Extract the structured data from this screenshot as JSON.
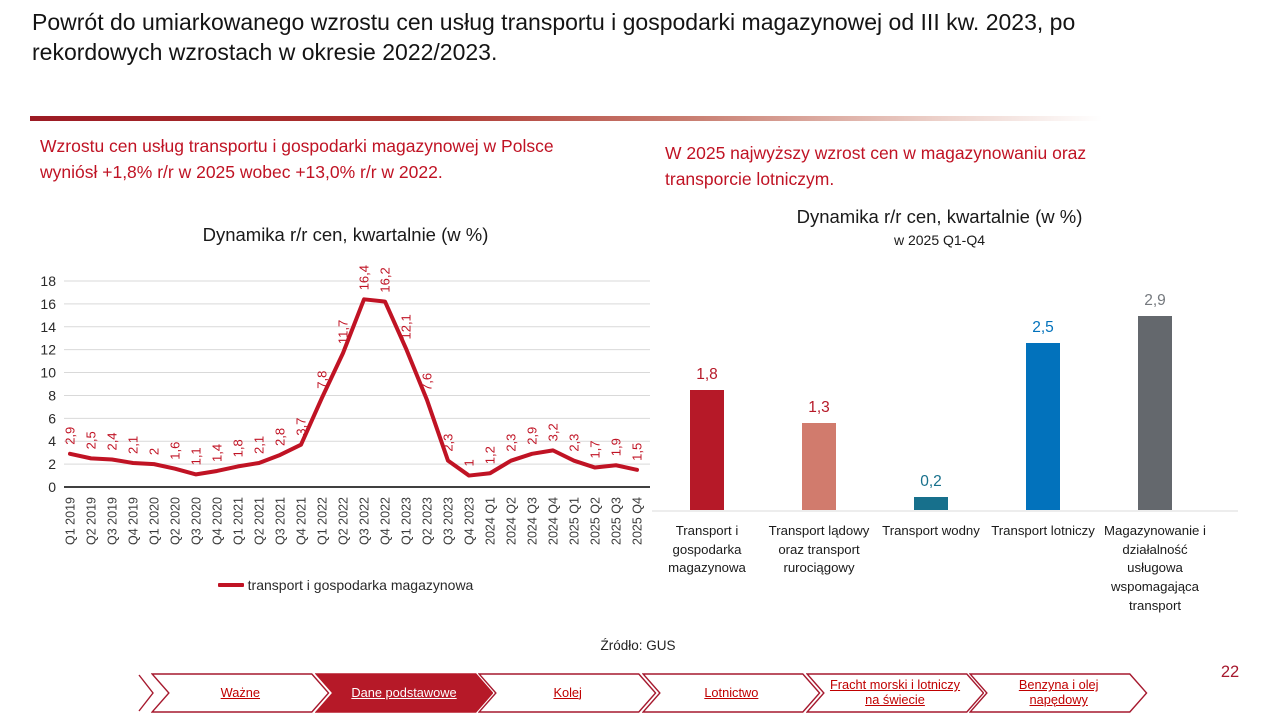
{
  "slide": {
    "title": "Powrót do umiarkowanego wzrostu cen usług transportu i gospodarki magazynowej od III kw. 2023, po rekordowych wzrostach w okresie 2022/2023.",
    "page_number": "22",
    "source": "Źródło: GUS"
  },
  "left_panel": {
    "callout": "Wzrostu cen usług transportu i gospodarki magazynowej w Polsce wyniósł +1,8% r/r w 2025 wobec +13,0% r/r w 2022.",
    "chart_title": "Dynamika r/r cen, kwartalnie (w %)"
  },
  "right_panel": {
    "callout": "W 2025 najwyższy wzrost cen w magazynowaniu oraz transporcie lotniczym.",
    "chart_title": "Dynamika r/r cen, kwartalnie (w %)",
    "chart_subtitle": "w 2025 Q1-Q4"
  },
  "chart_data": [
    {
      "type": "line",
      "title": "Dynamika r/r cen, kwartalnie (w %)",
      "x": [
        "Q1 2019",
        "Q2 2019",
        "Q3 2019",
        "Q4 2019",
        "Q1 2020",
        "Q2 2020",
        "Q3 2020",
        "Q4 2020",
        "Q1 2021",
        "Q2 2021",
        "Q3 2021",
        "Q4 2021",
        "Q1 2022",
        "Q2 2022",
        "Q3 2022",
        "Q4 2022",
        "Q1 2023",
        "Q2 2023",
        "Q3 2023",
        "Q4 2023",
        "2024 Q1",
        "2024 Q2",
        "2024 Q3",
        "2024 Q4",
        "2025 Q1",
        "2025 Q2",
        "2025 Q3",
        "2025 Q4"
      ],
      "series": [
        {
          "name": "transport i gospodarka magazynowa",
          "color": "#c01324",
          "values": [
            2.9,
            2.5,
            2.4,
            2.1,
            2,
            1.6,
            1.1,
            1.4,
            1.8,
            2.1,
            2.8,
            3.7,
            7.8,
            11.7,
            16.4,
            16.2,
            12.1,
            7.6,
            2.3,
            1,
            1.2,
            2.3,
            2.9,
            3.2,
            2.3,
            1.7,
            1.9,
            1.5
          ],
          "labels": [
            "2,9",
            "2,5",
            "2,4",
            "2,1",
            "2",
            "1,6",
            "1,1",
            "1,4",
            "1,8",
            "2,1",
            "2,8",
            "3,7",
            "7,8",
            "11,7",
            "16,4",
            "16,2",
            "12,1",
            "7,6",
            "2,3",
            "1",
            "1,2",
            "2,3",
            "2,9",
            "3,2",
            "2,3",
            "1,7",
            "1,9",
            "1,5"
          ]
        }
      ],
      "ylim": [
        0,
        18
      ],
      "ytick_step": 2,
      "grid": true,
      "legend_position": "bottom",
      "grid_color": "#d9d9d9",
      "axis_color": "#000000",
      "tick_color": "#3a3a3a"
    },
    {
      "type": "bar",
      "title": "Dynamika r/r cen, kwartalnie (w %)",
      "subtitle": "w 2025 Q1-Q4",
      "categories": [
        "Transport i gospodarka magazynowa",
        "Transport lądowy oraz transport rurociągowy",
        "Transport wodny",
        "Transport lotniczy",
        "Magazynowanie i działalność usługowa wspomagająca transport"
      ],
      "values": [
        1.8,
        1.3,
        0.2,
        2.5,
        2.9
      ],
      "labels": [
        "1,8",
        "1,3",
        "0,2",
        "2,5",
        "2,9"
      ],
      "bar_colors": [
        "#b61928",
        "#d17b6d",
        "#17708c",
        "#0272bc",
        "#64686d"
      ],
      "label_colors": [
        "#b61928",
        "#b61928",
        "#17708c",
        "#0272bc",
        "#75797e"
      ],
      "ylim": [
        0,
        3.2
      ],
      "grid": false
    }
  ],
  "legend": {
    "label": "transport i gospodarka magazynowa"
  },
  "nav": {
    "accent": "#a6192e",
    "active_fill": "#b61928",
    "items": [
      {
        "label": "Ważne",
        "active": false
      },
      {
        "label": "Dane podstawowe",
        "active": true
      },
      {
        "label": "Kolej",
        "active": false
      },
      {
        "label": "Lotnictwo",
        "active": false
      },
      {
        "label": "Fracht morski i lotniczy na świecie",
        "active": false
      },
      {
        "label": "Benzyna i olej napędowy",
        "active": false
      }
    ]
  },
  "colors": {
    "accent_red": "#c01324",
    "title_text": "#141414"
  }
}
